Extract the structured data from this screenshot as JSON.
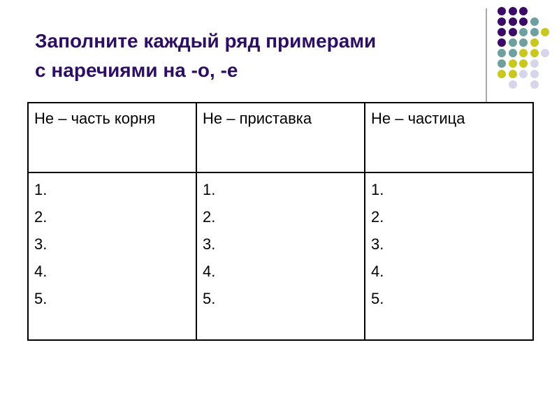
{
  "title": {
    "line1": "Заполните каждый ряд примерами",
    "line2": "с наречиями на -о, -е"
  },
  "colors": {
    "title": "#2e0e63",
    "purple": "#3a0a66",
    "teal": "#6fa0a0",
    "yellow": "#c8c81e",
    "lavender": "#d6d6ea"
  },
  "decoration_grid": [
    "PPP..",
    "PPPT.",
    "PPTTY",
    "PTTY.",
    "TTYYL",
    "TYYL.",
    "YYLL.",
    ".L.L."
  ],
  "table": {
    "headers": [
      "Не – часть корня",
      "Не – приставка",
      "Не – частица"
    ],
    "columns": [
      [
        "1.",
        "2.",
        "3.",
        "4.",
        "5."
      ],
      [
        "1.",
        "2.",
        "3.",
        "4.",
        "5."
      ],
      [
        "1.",
        "2.",
        "3.",
        "4.",
        "5."
      ]
    ]
  }
}
